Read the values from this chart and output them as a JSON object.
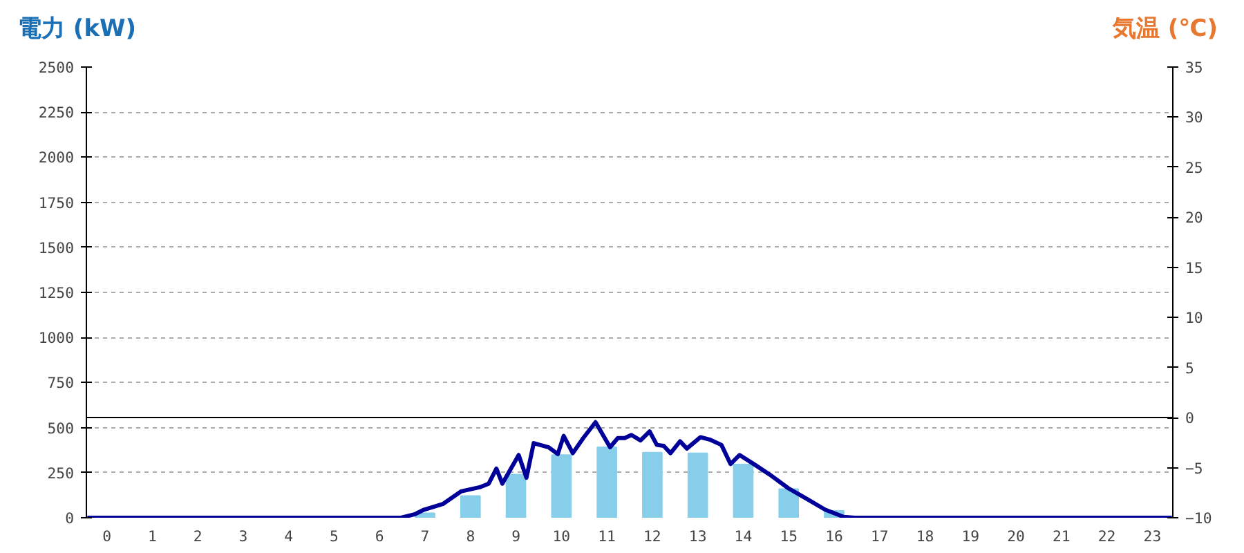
{
  "chart_data": {
    "type": "bar",
    "ylabel": "電力 (kW)",
    "y2label": "気温 (℃)",
    "x": [
      0,
      1,
      2,
      3,
      4,
      5,
      6,
      7,
      8,
      9,
      10,
      11,
      12,
      13,
      14,
      15,
      16,
      17,
      18,
      19,
      20,
      21,
      22,
      23
    ],
    "xlim": [
      -0.45,
      23.45
    ],
    "xticks": [
      0,
      1,
      2,
      3,
      4,
      5,
      6,
      7,
      8,
      9,
      10,
      11,
      12,
      13,
      14,
      15,
      16,
      17,
      18,
      19,
      20,
      21,
      22,
      23
    ],
    "series": [
      {
        "color": "#87ceeb",
        "values": [
          0,
          0,
          0,
          0,
          0,
          0,
          0,
          25,
          121,
          240,
          348,
          391,
          361,
          358,
          295,
          159,
          38,
          0,
          0,
          0,
          0,
          0,
          0,
          0
        ]
      },
      {
        "type": "line",
        "color": "#000099",
        "x": [
          -0.43,
          6.47,
          6.78,
          6.98,
          7.39,
          7.79,
          8.2,
          8.4,
          8.57,
          8.7,
          9.06,
          9.23,
          9.39,
          9.72,
          9.92,
          10.05,
          10.25,
          10.48,
          10.75,
          11.07,
          11.24,
          11.39,
          11.54,
          11.74,
          11.94,
          12.1,
          12.25,
          12.4,
          12.61,
          12.76,
          13.06,
          13.26,
          13.52,
          13.72,
          13.92,
          14.28,
          14.58,
          14.99,
          15.39,
          15.8,
          16.21,
          16.45,
          23.43
        ],
        "values": [
          0,
          0,
          20,
          45,
          76,
          146,
          169,
          189,
          273,
          189,
          348,
          222,
          414,
          391,
          353,
          454,
          358,
          442,
          530,
          391,
          442,
          442,
          459,
          429,
          479,
          404,
          399,
          358,
          424,
          384,
          447,
          434,
          404,
          298,
          348,
          290,
          240,
          164,
          106,
          45,
          5,
          0,
          0
        ]
      }
    ],
    "ylim": [
      0,
      2500
    ],
    "yticks": [
      0,
      250,
      500,
      750,
      1000,
      1250,
      1500,
      1750,
      2000,
      2250,
      2500
    ],
    "y2lim": [
      -10,
      35
    ],
    "y2ticks": [
      -10,
      -5,
      0,
      5,
      10,
      15,
      20,
      25,
      30,
      35
    ],
    "ref_lines": [
      {
        "axis": "y2",
        "value": 0,
        "color": "#000000"
      }
    ],
    "grid": "y",
    "marker": "none",
    "line_style": "solid"
  }
}
